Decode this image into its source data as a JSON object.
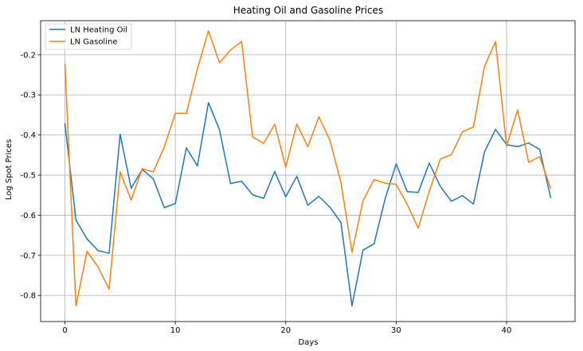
{
  "chart_data": {
    "type": "line",
    "title": "Heating Oil and Gasoline Prices",
    "xlabel": "Days",
    "ylabel": "Log Spot Prices",
    "xlim": [
      -2.2,
      46.2
    ],
    "ylim": [
      -0.865,
      -0.115
    ],
    "xticks": [
      0,
      10,
      20,
      30,
      40
    ],
    "yticks": [
      -0.8,
      -0.7,
      -0.6,
      -0.5,
      -0.4,
      -0.3,
      -0.2
    ],
    "grid": true,
    "legend_position": "top-left",
    "series": [
      {
        "name": "LN Heating Oil",
        "color": "#1f77b4",
        "x": [
          0,
          1,
          2,
          3,
          4,
          5,
          6,
          7,
          8,
          9,
          10,
          11,
          12,
          13,
          14,
          15,
          16,
          17,
          18,
          19,
          20,
          21,
          22,
          23,
          24,
          25,
          26,
          27,
          28,
          29,
          30,
          31,
          32,
          33,
          34,
          35,
          36,
          37,
          38,
          39,
          40,
          41,
          42,
          43,
          44
        ],
        "values": [
          -0.371,
          -0.612,
          -0.659,
          -0.688,
          -0.695,
          -0.398,
          -0.533,
          -0.486,
          -0.509,
          -0.581,
          -0.571,
          -0.432,
          -0.477,
          -0.319,
          -0.387,
          -0.521,
          -0.515,
          -0.549,
          -0.558,
          -0.491,
          -0.554,
          -0.503,
          -0.575,
          -0.553,
          -0.58,
          -0.618,
          -0.826,
          -0.687,
          -0.671,
          -0.559,
          -0.472,
          -0.541,
          -0.543,
          -0.47,
          -0.528,
          -0.565,
          -0.551,
          -0.572,
          -0.442,
          -0.386,
          -0.424,
          -0.429,
          -0.42,
          -0.436,
          -0.557
        ]
      },
      {
        "name": "LN Gasoline",
        "color": "#ff7f0e",
        "x": [
          0,
          1,
          2,
          3,
          4,
          5,
          6,
          7,
          8,
          9,
          10,
          11,
          12,
          13,
          14,
          15,
          16,
          17,
          18,
          19,
          20,
          21,
          22,
          23,
          24,
          25,
          26,
          27,
          28,
          29,
          30,
          31,
          32,
          33,
          34,
          35,
          36,
          37,
          38,
          39,
          40,
          41,
          42,
          43,
          44
        ],
        "values": [
          -0.222,
          -0.826,
          -0.69,
          -0.729,
          -0.784,
          -0.492,
          -0.562,
          -0.484,
          -0.492,
          -0.43,
          -0.346,
          -0.346,
          -0.235,
          -0.14,
          -0.22,
          -0.188,
          -0.167,
          -0.405,
          -0.421,
          -0.373,
          -0.48,
          -0.373,
          -0.429,
          -0.355,
          -0.413,
          -0.519,
          -0.692,
          -0.564,
          -0.511,
          -0.52,
          -0.523,
          -0.573,
          -0.632,
          -0.54,
          -0.46,
          -0.449,
          -0.392,
          -0.38,
          -0.229,
          -0.167,
          -0.428,
          -0.337,
          -0.468,
          -0.454,
          -0.534
        ]
      }
    ]
  }
}
